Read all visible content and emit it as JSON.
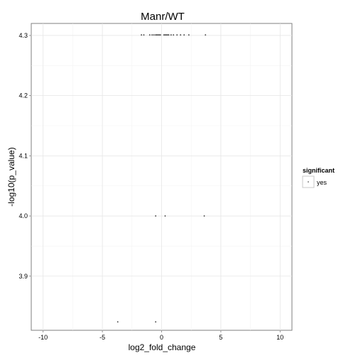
{
  "chart_data": {
    "type": "scatter",
    "title": "Manr/WT",
    "xlabel": "log2_fold_change",
    "ylabel": "-log10(p_value)",
    "xlim": [
      -11,
      11
    ],
    "ylim": [
      3.81,
      4.32
    ],
    "x_ticks": [
      -10,
      -5,
      0,
      5,
      10
    ],
    "x_tick_labels": [
      "-10",
      "-5",
      "0",
      "5",
      "10"
    ],
    "y_ticks": [
      3.9,
      4.0,
      4.1,
      4.2,
      4.3
    ],
    "y_tick_labels": [
      "3.9",
      "4.0",
      "4.1",
      "4.2",
      "4.3"
    ],
    "grid": true,
    "legend": {
      "title": "significant",
      "placement": "right",
      "entries": [
        {
          "label": "yes",
          "color": "#333333"
        }
      ]
    },
    "series": [
      {
        "name": "yes",
        "color": "#333333",
        "points": [
          {
            "x": -1.7,
            "y": 4.301
          },
          {
            "x": -1.5,
            "y": 4.301
          },
          {
            "x": -1.0,
            "y": 4.301
          },
          {
            "x": -0.8,
            "y": 4.301
          },
          {
            "x": -0.65,
            "y": 4.301
          },
          {
            "x": -0.5,
            "y": 4.301
          },
          {
            "x": -0.4,
            "y": 4.301
          },
          {
            "x": -0.3,
            "y": 4.301
          },
          {
            "x": -0.2,
            "y": 4.301
          },
          {
            "x": -0.1,
            "y": 4.301
          },
          {
            "x": 0.2,
            "y": 4.301
          },
          {
            "x": 0.3,
            "y": 4.301
          },
          {
            "x": 0.4,
            "y": 4.301
          },
          {
            "x": 0.5,
            "y": 4.301
          },
          {
            "x": 0.6,
            "y": 4.301
          },
          {
            "x": 0.8,
            "y": 4.301
          },
          {
            "x": 1.0,
            "y": 4.301
          },
          {
            "x": 1.3,
            "y": 4.301
          },
          {
            "x": 1.6,
            "y": 4.301
          },
          {
            "x": 1.9,
            "y": 4.301
          },
          {
            "x": 2.3,
            "y": 4.301
          },
          {
            "x": 3.7,
            "y": 4.301
          },
          {
            "x": -0.5,
            "y": 4.0
          },
          {
            "x": 0.3,
            "y": 4.0
          },
          {
            "x": 3.6,
            "y": 4.0
          },
          {
            "x": -3.7,
            "y": 3.824
          },
          {
            "x": -0.5,
            "y": 3.824
          }
        ]
      }
    ]
  }
}
